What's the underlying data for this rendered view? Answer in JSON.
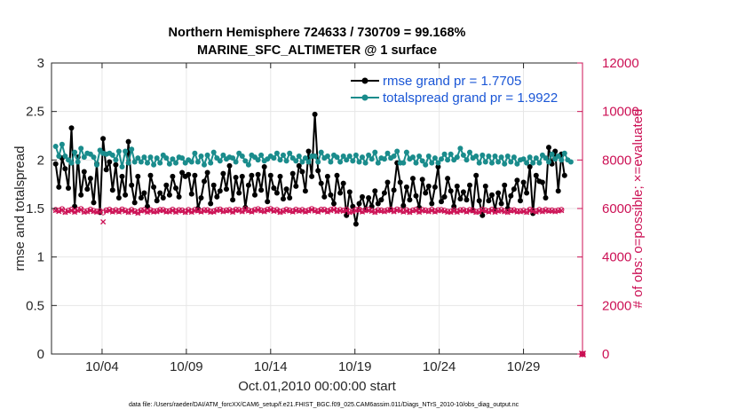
{
  "chart_data": {
    "type": "line",
    "title_line1": "Northern Hemisphere 724633 / 730709 = 99.168%",
    "title_line2": "MARINE_SFC_ALTIMETER @ 1 surface",
    "xlabel": "Oct.01,2010 00:00:00 start",
    "ylabel_left": "rmse and totalspread",
    "ylabel_right": "# of obs: o=possible; ×=evaluated",
    "footnote": "data file: /Users/raeder/DAI/ATM_forcXX/CAM6_setup/f.e21.FHIST_BGC.f09_025.CAM6assim.011/Diags_NTrS_2010-10/obs_diag_output.nc",
    "x_range": [
      1,
      32.5
    ],
    "x_ticks": [
      4,
      9,
      14,
      19,
      24,
      29
    ],
    "x_tick_labels": [
      "10/04",
      "10/09",
      "10/14",
      "10/19",
      "10/24",
      "10/29"
    ],
    "ylim_left": [
      0,
      3
    ],
    "left_ticks": [
      0,
      0.5,
      1,
      1.5,
      2,
      2.5,
      3
    ],
    "left_tick_labels": [
      "0",
      "0.5",
      "1",
      "1.5",
      "2",
      "2.5",
      "3"
    ],
    "ylim_right": [
      0,
      12000
    ],
    "right_ticks": [
      0,
      2000,
      4000,
      6000,
      8000,
      10000,
      12000
    ],
    "right_tick_labels": [
      "0",
      "2000",
      "4000",
      "6000",
      "8000",
      "10000",
      "12000"
    ],
    "grid": true,
    "legend_position": "top-right",
    "series": [
      {
        "name": "rmse grand pr = 1.7705",
        "axis": "left",
        "color": "#000000",
        "marker": "dot",
        "values": [
          1.96,
          1.72,
          2.02,
          1.91,
          1.71,
          2.33,
          1.52,
          2.03,
          1.64,
          1.88,
          1.7,
          1.81,
          1.56,
          1.96,
          1.46,
          2.22,
          1.9,
          1.98,
          1.69,
          1.95,
          1.61,
          1.83,
          1.64,
          2.19,
          1.74,
          1.56,
          1.83,
          1.61,
          1.66,
          1.52,
          1.84,
          1.72,
          1.58,
          1.66,
          1.61,
          1.74,
          1.64,
          1.83,
          1.71,
          1.62,
          1.87,
          1.83,
          1.85,
          1.65,
          1.84,
          1.5,
          1.61,
          1.78,
          1.87,
          1.55,
          1.74,
          1.62,
          1.68,
          1.86,
          1.7,
          1.94,
          1.59,
          1.82,
          1.66,
          1.83,
          1.51,
          1.74,
          1.84,
          1.64,
          1.85,
          1.69,
          1.93,
          1.57,
          1.84,
          1.71,
          1.66,
          1.83,
          1.6,
          1.7,
          1.61,
          1.86,
          1.73,
          1.94,
          1.88,
          1.68,
          2.09,
          1.83,
          2.47,
          1.89,
          1.76,
          1.62,
          1.83,
          1.64,
          1.55,
          1.84,
          1.66,
          1.76,
          1.43,
          1.67,
          1.52,
          1.34,
          1.55,
          1.62,
          1.49,
          1.61,
          1.52,
          1.68,
          1.55,
          1.59,
          1.66,
          1.77,
          1.49,
          1.69,
          1.97,
          1.77,
          1.53,
          1.72,
          1.59,
          1.81,
          1.63,
          1.51,
          1.8,
          1.66,
          1.73,
          1.55,
          1.72,
          1.93,
          1.57,
          1.62,
          1.81,
          1.68,
          1.52,
          1.73,
          1.6,
          1.67,
          1.59,
          1.74,
          1.48,
          1.84,
          1.58,
          1.43,
          1.73,
          1.58,
          1.64,
          1.49,
          1.66,
          1.55,
          1.74,
          1.5,
          1.63,
          1.7,
          1.79,
          1.58,
          1.77,
          1.66,
          1.93,
          1.45,
          1.84,
          1.78,
          1.77,
          1.61,
          2.13,
          1.96,
          2.09,
          1.68,
          2.06,
          1.84
        ]
      },
      {
        "name": "totalspread grand pr = 1.9922",
        "axis": "left",
        "color": "#1a8c8c",
        "marker": "dot",
        "values": [
          2.14,
          2.04,
          2.16,
          2.04,
          2.0,
          1.97,
          2.08,
          1.98,
          2.12,
          2.03,
          2.07,
          2.06,
          2.03,
          1.95,
          2.1,
          2.07,
          2.06,
          2.07,
          2.05,
          2.0,
          2.09,
          1.93,
          2.09,
          1.97,
          2.11,
          1.98,
          2.02,
          1.98,
          2.03,
          1.97,
          2.03,
          1.95,
          2.02,
          1.97,
          2.05,
          2.02,
          1.96,
          2.01,
          1.97,
          2.03,
          2.02,
          1.97,
          2.0,
          1.98,
          2.07,
          1.98,
          2.04,
          1.95,
          2.05,
          1.97,
          2.08,
          2.02,
          1.99,
          2.05,
          2.01,
          2.03,
          2.02,
          1.98,
          2.07,
          2.04,
          1.99,
          1.95,
          2.05,
          2.03,
          2.0,
          2.05,
          1.99,
          2.01,
          2.04,
          2.02,
          2.07,
          2.0,
          2.05,
          1.99,
          2.07,
          2.02,
          1.99,
          2.04,
          1.98,
          2.02,
          1.98,
          2.04,
          2.04,
          1.98,
          2.08,
          2.02,
          2.04,
          1.98,
          2.05,
          2.03,
          1.98,
          2.04,
          2.0,
          2.04,
          1.99,
          2.05,
          1.98,
          2.03,
          1.97,
          2.05,
          2.01,
          2.08,
          1.97,
          2.02,
          2.01,
          2.07,
          2.02,
          2.04,
          2.09,
          1.97,
          1.97,
          2.08,
          2.01,
          2.03,
          1.97,
          2.04,
          1.99,
          1.95,
          2.04,
          1.97,
          2.02,
          1.97,
          2.01,
          2.06,
          2.0,
          2.06,
          2.0,
          2.03,
          2.12,
          2.05,
          2.0,
          2.08,
          2.02,
          2.04,
          1.97,
          2.05,
          1.98,
          2.04,
          1.97,
          2.04,
          1.98,
          2.03,
          1.96,
          2.04,
          1.98,
          2.03,
          1.96,
          2.0,
          2.01,
          1.97,
          2.03,
          1.97,
          2.02,
          1.97,
          2.05,
          2.02,
          1.98,
          2.06,
          2.01,
          2.04,
          2.0,
          2.07,
          2.0,
          1.98
        ]
      },
      {
        "name": "# of obs possible",
        "axis": "right",
        "color": "#cc1155",
        "marker": "circle",
        "values": [
          5950,
          5920,
          5980,
          5870,
          5920,
          5960,
          5880,
          5950,
          5990,
          5880,
          5900,
          5960,
          5910,
          5880,
          5900,
          5830,
          5930,
          5960,
          5890,
          5940,
          5890,
          5970,
          5920,
          5870,
          5950,
          5890,
          5840,
          5930,
          5950,
          5880,
          5940,
          5890,
          5900,
          5950,
          5950,
          5890,
          5900,
          5960,
          5880,
          5940,
          5930,
          5870,
          5950,
          5880,
          5950,
          5930,
          5890,
          5940,
          5940,
          5880,
          5890,
          5950,
          5970,
          5900,
          5930,
          5950,
          5880,
          5960,
          5950,
          5900,
          5980,
          5930,
          5890,
          5950,
          5980,
          5930,
          5900,
          5960,
          5990,
          5920,
          5950,
          5870,
          5910,
          5960,
          5930,
          5890,
          5960,
          5920,
          5950,
          5890,
          5930,
          5990,
          5930,
          5890,
          5960,
          5960,
          5890,
          5950,
          5990,
          5910,
          5950,
          5920,
          5960,
          5870,
          5900,
          5950,
          5970,
          5890,
          5940,
          5960,
          5920,
          5870,
          5940,
          5930,
          5900,
          5940,
          5960,
          5900,
          5970,
          5940,
          5890,
          5940,
          5870,
          5930,
          5960,
          5880,
          5950,
          5930,
          5900,
          5960,
          5890,
          5940,
          5950,
          5920,
          5880,
          5880,
          5940,
          5880,
          5940,
          5950,
          5890,
          5950,
          5930,
          5870,
          5890,
          5960,
          5930,
          5890,
          5960,
          5880,
          5920,
          5950,
          5900,
          5870,
          5930,
          5940,
          5890,
          5900,
          5920,
          5870,
          5960,
          5920,
          5890,
          5950,
          5900,
          5950,
          5920,
          5930,
          5900,
          5930,
          5950
        ],
        "final_point": 0
      },
      {
        "name": "# of obs evaluated",
        "axis": "right",
        "color": "#cc1155",
        "marker": "x",
        "values": [
          5920,
          5880,
          5950,
          5840,
          5890,
          5930,
          5850,
          5920,
          5960,
          5850,
          5870,
          5930,
          5880,
          5850,
          5870,
          5450,
          5900,
          5930,
          5860,
          5910,
          5860,
          5940,
          5890,
          5840,
          5920,
          5860,
          5810,
          5900,
          5920,
          5850,
          5910,
          5860,
          5870,
          5920,
          5920,
          5860,
          5870,
          5930,
          5850,
          5910,
          5900,
          5840,
          5920,
          5850,
          5920,
          5900,
          5860,
          5910,
          5910,
          5850,
          5860,
          5920,
          5940,
          5870,
          5900,
          5920,
          5850,
          5930,
          5920,
          5870,
          5950,
          5900,
          5860,
          5920,
          5950,
          5900,
          5870,
          5930,
          5960,
          5890,
          5920,
          5840,
          5880,
          5930,
          5900,
          5860,
          5930,
          5890,
          5920,
          5860,
          5900,
          5960,
          5900,
          5860,
          5930,
          5930,
          5860,
          5920,
          5960,
          5880,
          5920,
          5890,
          5930,
          5840,
          5870,
          5920,
          5940,
          5860,
          5910,
          5930,
          5890,
          5840,
          5910,
          5900,
          5870,
          5910,
          5930,
          5870,
          5940,
          5910,
          5860,
          5910,
          5840,
          5900,
          5930,
          5850,
          5920,
          5900,
          5870,
          5930,
          5860,
          5910,
          5920,
          5890,
          5850,
          5850,
          5910,
          5850,
          5910,
          5920,
          5860,
          5920,
          5900,
          5840,
          5860,
          5930,
          5900,
          5860,
          5930,
          5850,
          5890,
          5920,
          5870,
          5840,
          5900,
          5910,
          5860,
          5870,
          5890,
          5840,
          5930,
          5890,
          5860,
          5920,
          5870,
          5920,
          5890,
          5900,
          5870,
          5900,
          5920
        ],
        "final_point": 0
      }
    ]
  }
}
